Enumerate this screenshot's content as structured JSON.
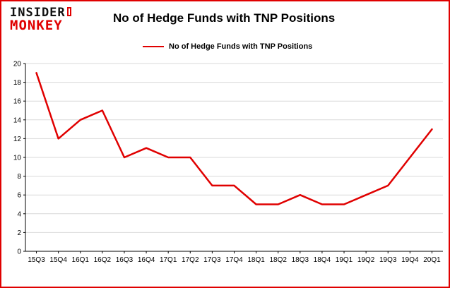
{
  "header": {
    "logo_line1": "INSIDER",
    "logo_line2": "MONKEY",
    "title": "No of Hedge Funds with TNP Positions"
  },
  "legend": {
    "label": "No of Hedge Funds with TNP Positions"
  },
  "colors": {
    "line": "#e00000",
    "border": "#e00000",
    "grid": "#d9d9d9",
    "axis": "#000000",
    "text": "#000000"
  },
  "chart_data": {
    "type": "line",
    "title": "No of Hedge Funds with TNP Positions",
    "xlabel": "",
    "ylabel": "",
    "categories": [
      "15Q3",
      "15Q4",
      "16Q1",
      "16Q2",
      "16Q3",
      "16Q4",
      "17Q1",
      "17Q2",
      "17Q3",
      "17Q4",
      "18Q1",
      "18Q2",
      "18Q3",
      "18Q4",
      "19Q1",
      "19Q2",
      "19Q3",
      "19Q4",
      "20Q1"
    ],
    "values": [
      19,
      12,
      14,
      15,
      10,
      11,
      10,
      10,
      7,
      7,
      5,
      5,
      6,
      5,
      5,
      6,
      7,
      10,
      13
    ],
    "ylim": [
      0,
      20
    ],
    "ytick_step": 2,
    "grid": "horizontal",
    "legend_position": "top-left",
    "series_name": "No of Hedge Funds with TNP Positions"
  }
}
